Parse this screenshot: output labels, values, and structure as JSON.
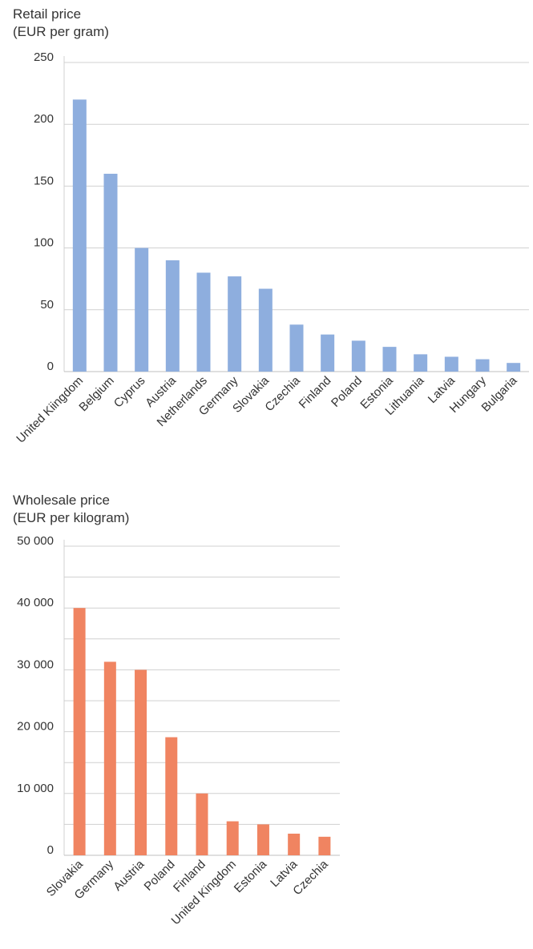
{
  "chart_data": [
    {
      "type": "bar",
      "title": "Retail price",
      "subtitle": "(EUR per gram)",
      "xlabel": "",
      "ylabel": "",
      "categories": [
        "United Kiingdom",
        "Belgium",
        "Cyprus",
        "Austria",
        "Netherlands",
        "Germany",
        "Slovakia",
        "Czechia",
        "Finland",
        "Poland",
        "Estonia",
        "Lithuania",
        "Latvia",
        "Hungary",
        "Bulgaria"
      ],
      "values": [
        220,
        160,
        100,
        90,
        80,
        77,
        67,
        38,
        30,
        25,
        20,
        14,
        12,
        10,
        7
      ],
      "ylim": [
        0,
        250
      ],
      "yticks": [
        0,
        50,
        100,
        150,
        200,
        250
      ],
      "ytick_labels": [
        "0",
        "50",
        "100",
        "150",
        "200",
        "250"
      ],
      "grid": true,
      "color": "#8eaede"
    },
    {
      "type": "bar",
      "title": "Wholesale price",
      "subtitle": "(EUR per kilogram)",
      "xlabel": "",
      "ylabel": "",
      "categories": [
        "Slovakia",
        "Germany",
        "Austria",
        "Poland",
        "Finland",
        "United Kingdom",
        "Estonia",
        "Latvia",
        "Czechia"
      ],
      "values": [
        40000,
        31300,
        30000,
        19100,
        10000,
        5500,
        5000,
        3500,
        3000
      ],
      "ylim": [
        0,
        50000
      ],
      "yticks": [
        0,
        10000,
        20000,
        30000,
        40000,
        50000
      ],
      "ytick_labels": [
        "0",
        "10 000",
        "20 000",
        "30 000",
        "40 000",
        "50 000"
      ],
      "grid": true,
      "color": "#f08461"
    }
  ]
}
